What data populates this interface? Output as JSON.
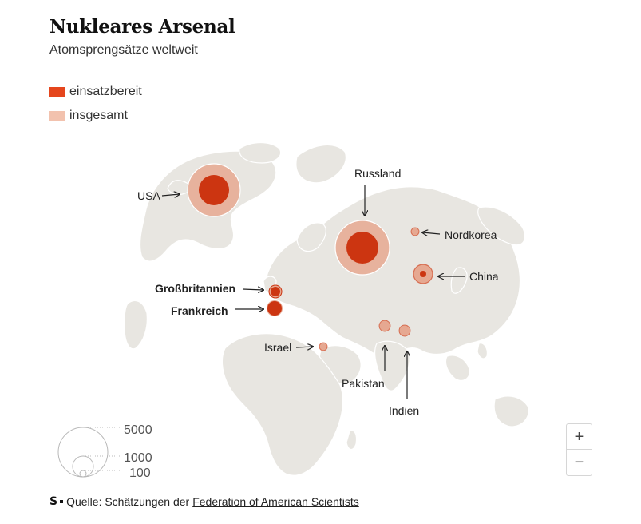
{
  "header": {
    "title": "Nukleares Arsenal",
    "subtitle": "Atomsprengsätze weltweit"
  },
  "legend": [
    {
      "label": "einsatzbereit",
      "color": "#e5461d"
    },
    {
      "label": "insgesamt",
      "color": "#f2c2ae"
    }
  ],
  "map": {
    "land_color": "#e8e6e1",
    "outer_color": "#e6a891",
    "inner_color": "#cc3511"
  },
  "markers": [
    {
      "id": "usa",
      "label": "USA",
      "bold": false
    },
    {
      "id": "russland",
      "label": "Russland",
      "bold": false
    },
    {
      "id": "nordkorea",
      "label": "Nordkorea",
      "bold": false
    },
    {
      "id": "china",
      "label": "China",
      "bold": false
    },
    {
      "id": "grossbritannien",
      "label": "Großbritannien",
      "bold": true
    },
    {
      "id": "frankreich",
      "label": "Frankreich",
      "bold": true
    },
    {
      "id": "israel",
      "label": "Israel",
      "bold": false
    },
    {
      "id": "pakistan",
      "label": "Pakistan",
      "bold": false
    },
    {
      "id": "indien",
      "label": "Indien",
      "bold": false
    }
  ],
  "size_legend": [
    "5000",
    "1000",
    "100"
  ],
  "zoom": {
    "in": "+",
    "out": "−"
  },
  "footer": {
    "logo": "S",
    "prefix": "Quelle: Schätzungen der",
    "link": "Federation of American Scientists"
  }
}
